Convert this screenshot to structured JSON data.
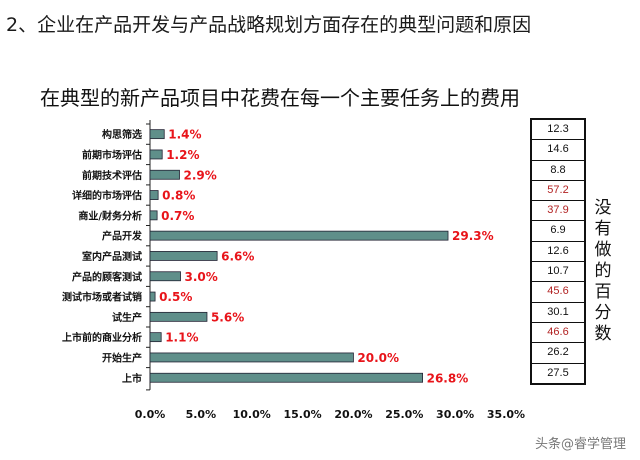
{
  "heading": "2、企业在产品开发与产品战略规划方面存在的典型问题和原因",
  "watermark": "头条@睿学管理",
  "chart_data": {
    "type": "bar",
    "orientation": "horizontal",
    "title": "在典型的新产品项目中花费在每一个主要任务上的费用",
    "categories": [
      "构思筛选",
      "前期市场评估",
      "前期技术评估",
      "详细的市场评估",
      "商业/财务分析",
      "产品开发",
      "室内产品测试",
      "产品的顾客测试",
      "测试市场或者试销",
      "试生产",
      "上市前的商业分析",
      "开始生产",
      "上市"
    ],
    "values": [
      1.4,
      1.2,
      2.9,
      0.8,
      0.7,
      29.3,
      6.6,
      3.0,
      0.5,
      5.6,
      1.1,
      20.0,
      26.8
    ],
    "value_labels": [
      "1.4%",
      "1.2%",
      "2.9%",
      "0.8%",
      "0.7%",
      "29.3%",
      "6.6%",
      "3.0%",
      "0.5%",
      "5.6%",
      "1.1%",
      "20.0%",
      "26.8%"
    ],
    "xlim": [
      0,
      35
    ],
    "xticks": [
      "0.0%",
      "5.0%",
      "10.0%",
      "15.0%",
      "20.0%",
      "25.0%",
      "30.0%",
      "35.0%"
    ],
    "bar_color": "#5f8f8a",
    "label_color": "#e8141a",
    "grid": false
  },
  "side_table": {
    "values": [
      "12.3",
      "14.6",
      "8.8",
      "57.2",
      "37.9",
      "6.9",
      "12.6",
      "10.7",
      "45.6",
      "30.1",
      "46.6",
      "26.2",
      "27.5"
    ],
    "highlight": [
      false,
      false,
      false,
      true,
      true,
      false,
      false,
      false,
      true,
      false,
      true,
      false,
      false
    ],
    "label": "没有做的百分数",
    "highlight_color": "#b22222"
  }
}
